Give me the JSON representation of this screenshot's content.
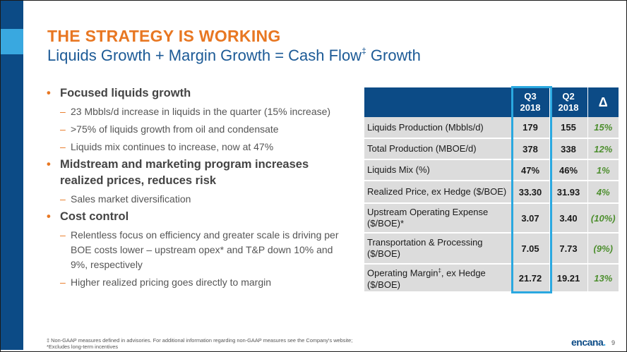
{
  "slide": {
    "title": "THE STRATEGY IS WORKING",
    "subtitle_main": "Liquids Growth + Margin Growth = Cash Flow",
    "subtitle_mark": "‡",
    "subtitle_end": "Growth",
    "page_number": "9",
    "logo_text": "encana"
  },
  "bullets": [
    {
      "text": "Focused liquids growth",
      "subs": [
        "23 Mbbls/d increase in liquids in the quarter (15% increase)",
        ">75% of liquids growth from oil and condensate",
        "Liquids mix continues to increase, now at 47%"
      ]
    },
    {
      "text": "Midstream and marketing program increases realized prices, reduces risk",
      "subs": [
        "Sales market diversification"
      ]
    },
    {
      "text": "Cost control",
      "subs": [
        "Relentless focus on efficiency and greater scale is driving per BOE costs lower – upstream opex* and T&P down 10% and 9%, respectively",
        "Higher realized pricing goes directly to margin"
      ]
    }
  ],
  "table": {
    "headers": {
      "q3": [
        "Q3",
        "2018"
      ],
      "q2": [
        "Q2",
        "2018"
      ],
      "delta": "Δ"
    },
    "rows": [
      {
        "label": "Liquids Production (Mbbls/d)",
        "q3": "179",
        "q2": "155",
        "delta": "15%"
      },
      {
        "label": "Total Production (MBOE/d)",
        "q3": "378",
        "q2": "338",
        "delta": "12%"
      },
      {
        "label": "Liquids Mix (%)",
        "q3": "47%",
        "q2": "46%",
        "delta": "1%"
      },
      {
        "label": "Realized Price, ex Hedge ($/BOE)",
        "q3": "33.30",
        "q2": "31.93",
        "delta": "4%"
      },
      {
        "label": "Upstream Operating Expense ($/BOE)*",
        "q3": "3.07",
        "q2": "3.40",
        "delta": "(10%)"
      },
      {
        "label": "Transportation & Processing ($/BOE)",
        "q3": "7.05",
        "q2": "7.73",
        "delta": "(9%)"
      },
      {
        "label": "Operating Margin",
        "label_mark": "‡",
        "label_end": ", ex Hedge ($/BOE)",
        "q3": "21.72",
        "q2": "19.21",
        "delta": "13%"
      }
    ]
  },
  "footnotes": [
    "‡ Non-GAAP measures defined in advisories. For additional information regarding non-GAAP measures see the Company's website;",
    "*Excludes long-term incentives"
  ],
  "colors": {
    "title_orange": "#e87722",
    "subtitle_blue": "#1c5a96",
    "table_header_navy": "#0c4b86",
    "highlight_cyan": "#2aa8e0",
    "delta_green": "#4e8f2f",
    "row_gray": "#dcdcdc"
  }
}
